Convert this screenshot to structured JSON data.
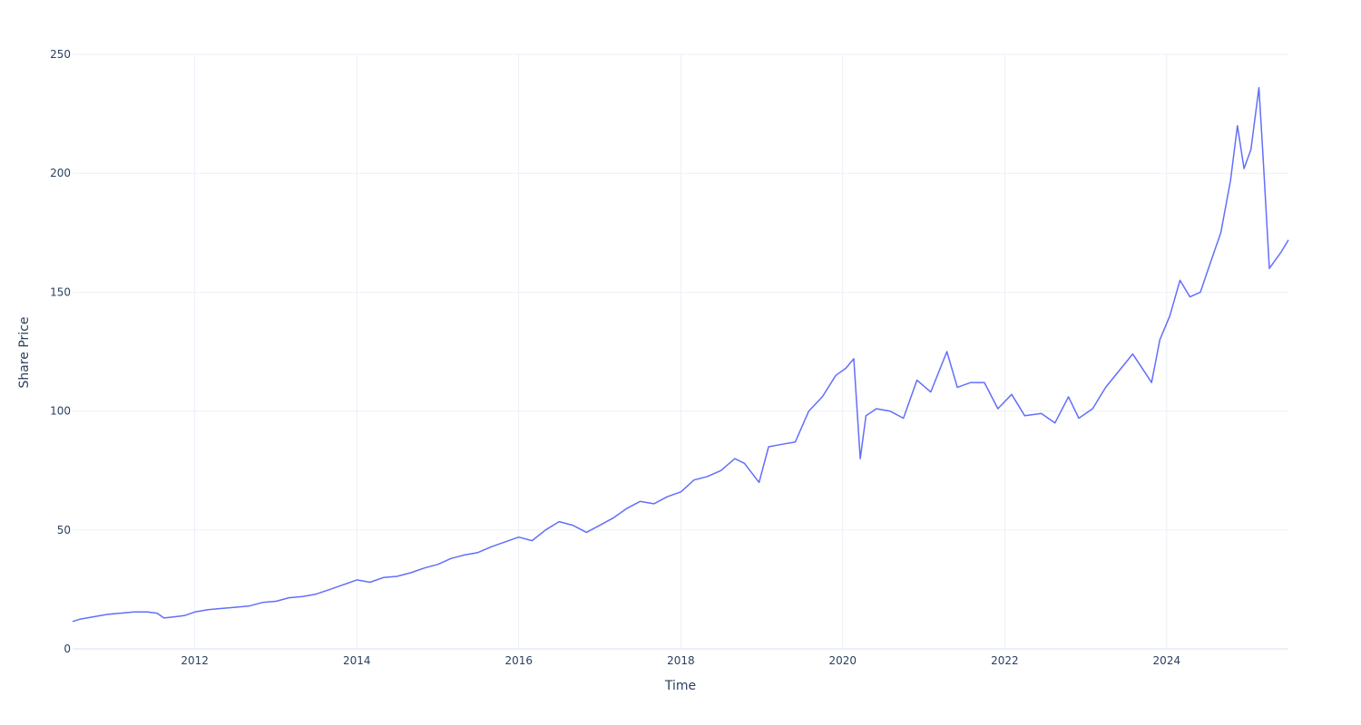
{
  "chart_data": {
    "type": "line",
    "title": "",
    "xlabel": "Time",
    "ylabel": "Share Price",
    "x_tick_labels": [
      "2012",
      "2014",
      "2016",
      "2018",
      "2020",
      "2022",
      "2024"
    ],
    "y_tick_labels": [
      "0",
      "50",
      "100",
      "150",
      "200",
      "250"
    ],
    "y_ticks": [
      0,
      50,
      100,
      150,
      200,
      250
    ],
    "ylim": [
      0,
      250
    ],
    "xlim": [
      "2010-06-29",
      "2025-07-03"
    ],
    "grid": true,
    "legend": "none",
    "colors": {
      "line": "#636efa",
      "grid": "#ebf0f8",
      "text": "#2a3f5f"
    },
    "series": [
      {
        "x": [
          "2010-06-29",
          "2010-08-01",
          "2010-10-01",
          "2010-12-01",
          "2011-02-01",
          "2011-04-01",
          "2011-06-01",
          "2011-07-15",
          "2011-08-15",
          "2011-10-01",
          "2011-11-15",
          "2012-01-01",
          "2012-03-01",
          "2012-05-01",
          "2012-07-01",
          "2012-09-01",
          "2012-11-01",
          "2013-01-01",
          "2013-03-01",
          "2013-05-01",
          "2013-07-01",
          "2013-09-01",
          "2013-11-01",
          "2014-01-01",
          "2014-03-01",
          "2014-05-01",
          "2014-07-01",
          "2014-09-01",
          "2014-11-01",
          "2015-01-01",
          "2015-03-01",
          "2015-05-01",
          "2015-07-01",
          "2015-09-01",
          "2015-11-01",
          "2016-01-01",
          "2016-03-01",
          "2016-05-01",
          "2016-07-01",
          "2016-09-01",
          "2016-11-01",
          "2017-01-01",
          "2017-03-01",
          "2017-05-01",
          "2017-07-01",
          "2017-09-01",
          "2017-11-01",
          "2018-01-01",
          "2018-03-01",
          "2018-05-01",
          "2018-07-01",
          "2018-09-01",
          "2018-10-15",
          "2018-12-20",
          "2019-02-01",
          "2019-04-01",
          "2019-06-01",
          "2019-08-01",
          "2019-10-01",
          "2019-12-01",
          "2020-01-15",
          "2020-02-20",
          "2020-03-20",
          "2020-04-15",
          "2020-06-01",
          "2020-08-01",
          "2020-10-01",
          "2020-12-01",
          "2021-02-01",
          "2021-04-15",
          "2021-06-01",
          "2021-08-01",
          "2021-10-01",
          "2021-12-01",
          "2022-02-01",
          "2022-04-01",
          "2022-06-15",
          "2022-08-15",
          "2022-10-15",
          "2022-12-01",
          "2023-02-01",
          "2023-04-01",
          "2023-06-01",
          "2023-08-01",
          "2023-10-25",
          "2023-12-01",
          "2024-01-15",
          "2024-03-01",
          "2024-04-15",
          "2024-06-01",
          "2024-07-15",
          "2024-09-01",
          "2024-10-15",
          "2024-11-15",
          "2024-12-15",
          "2025-01-15",
          "2025-02-20",
          "2025-03-10",
          "2025-04-08",
          "2025-05-01",
          "2025-06-01",
          "2025-07-03"
        ],
        "y": [
          11.5,
          12.5,
          13.5,
          14.5,
          15.0,
          15.5,
          15.5,
          15.0,
          13.0,
          13.5,
          14.0,
          15.5,
          16.5,
          17.0,
          17.5,
          18.0,
          19.5,
          20.0,
          21.5,
          22.0,
          23.0,
          25.0,
          27.0,
          29.0,
          28.0,
          30.0,
          30.5,
          32.0,
          34.0,
          35.5,
          38.0,
          39.5,
          40.5,
          43.0,
          45.0,
          47.0,
          45.5,
          50.0,
          53.5,
          52.0,
          49.0,
          52.0,
          55.0,
          59.0,
          62.0,
          61.0,
          64.0,
          66.0,
          71.0,
          72.5,
          75.0,
          80.0,
          78.0,
          70.0,
          85.0,
          86.0,
          87.0,
          100.0,
          106.0,
          115.0,
          118.0,
          122.0,
          80.0,
          98.0,
          101.0,
          100.0,
          97.0,
          113.0,
          108.0,
          125.0,
          110.0,
          112.0,
          112.0,
          101.0,
          107.0,
          98.0,
          99.0,
          95.0,
          106.0,
          97.0,
          101.0,
          110.0,
          117.0,
          124.0,
          112.0,
          130.0,
          140.0,
          155.0,
          148.0,
          150.0,
          162.0,
          175.0,
          197.0,
          220.0,
          202.0,
          210.0,
          236.0,
          208.0,
          160.0,
          163.0,
          167.0,
          172.0
        ]
      }
    ]
  }
}
